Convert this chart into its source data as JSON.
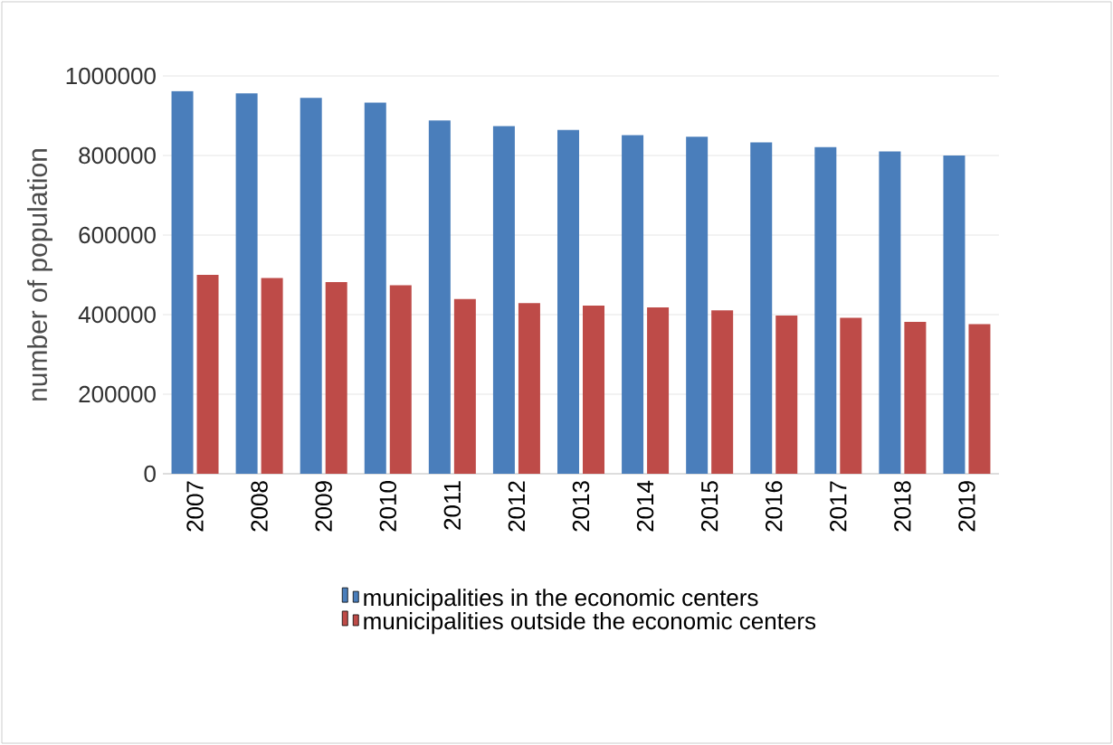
{
  "chart_data": {
    "type": "bar",
    "ylabel": "number of population",
    "categories": [
      "2007",
      "2008",
      "2009",
      "2010",
      "2011",
      "2012",
      "2013",
      "2014",
      "2015",
      "2016",
      "2017",
      "2018",
      "2019"
    ],
    "series": [
      {
        "name": "municipalities in the economic centers",
        "color": "#4a7ebb",
        "values": [
          962000,
          956000,
          945000,
          933000,
          888000,
          874000,
          864000,
          851000,
          847000,
          833000,
          821000,
          810000,
          800000
        ]
      },
      {
        "name": "municipalities outside the economic centers",
        "color": "#be4b48",
        "values": [
          500000,
          492000,
          482000,
          474000,
          439000,
          429000,
          423000,
          418000,
          411000,
          398000,
          392000,
          382000,
          376000
        ]
      }
    ],
    "ylim": [
      0,
      1000000
    ],
    "yticks": [
      0,
      200000,
      400000,
      600000,
      800000,
      1000000
    ],
    "grid": "y",
    "legend": "bottom"
  }
}
